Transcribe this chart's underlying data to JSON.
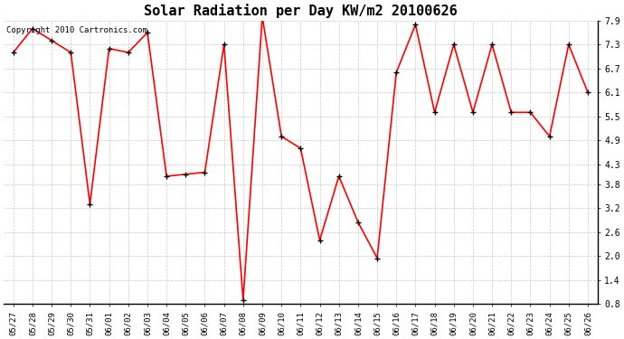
{
  "title": "Solar Radiation per Day KW/m2 20100626",
  "copyright": "Copyright 2010 Cartronics.com",
  "dates": [
    "05/27",
    "05/28",
    "05/29",
    "05/30",
    "05/31",
    "06/01",
    "06/02",
    "06/03",
    "06/04",
    "06/05",
    "06/06",
    "06/07",
    "06/08",
    "06/09",
    "06/10",
    "06/11",
    "06/12",
    "06/13",
    "06/14",
    "06/15",
    "06/16",
    "06/17",
    "06/18",
    "06/19",
    "06/20",
    "06/21",
    "06/22",
    "06/23",
    "06/24",
    "06/25",
    "06/26"
  ],
  "values": [
    7.1,
    7.7,
    7.4,
    7.1,
    3.3,
    7.2,
    7.1,
    7.6,
    4.0,
    4.05,
    4.1,
    7.3,
    0.9,
    8.0,
    5.0,
    4.7,
    2.4,
    4.0,
    2.85,
    1.95,
    6.6,
    7.8,
    5.6,
    7.3,
    5.6,
    7.3,
    5.6,
    5.6,
    5.0,
    7.3,
    6.1
  ],
  "ylim": [
    0.8,
    7.9
  ],
  "yticks": [
    0.8,
    1.4,
    2.0,
    2.6,
    3.2,
    3.8,
    4.3,
    4.9,
    5.5,
    6.1,
    6.7,
    7.3,
    7.9
  ],
  "line_color": "#ff0000",
  "marker_color": "#000000",
  "bg_color": "#ffffff",
  "grid_color": "#c8c8c8",
  "title_fontsize": 11,
  "tick_fontsize": 6.5,
  "ytick_fontsize": 7,
  "copyright_fontsize": 6.5
}
